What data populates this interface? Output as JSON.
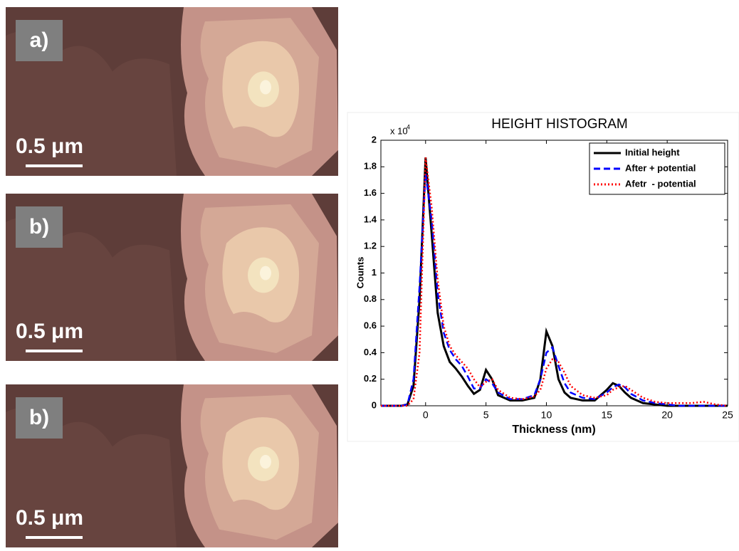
{
  "images": [
    {
      "label": "a)",
      "scale": "0.5 μm"
    },
    {
      "label": "b)",
      "scale": "0.5 μm"
    },
    {
      "label": "b)",
      "scale": "0.5 μm"
    }
  ],
  "chart_data": {
    "type": "line",
    "title": "HEIGHT HISTOGRAM",
    "xlabel": "Thickness  (nm)",
    "ylabel": "Counts",
    "y_scale_label": "x 10",
    "y_scale_exponent": "4",
    "x": [
      -3.7,
      -2,
      -1.5,
      -1,
      -0.5,
      0,
      0.5,
      1,
      1.5,
      2,
      2.5,
      3,
      3.5,
      4,
      4.5,
      5,
      5.5,
      6,
      7,
      8,
      9,
      9.5,
      10,
      10.5,
      11,
      11.5,
      12,
      13,
      14,
      15,
      15.5,
      16,
      16.5,
      17,
      18,
      19,
      20,
      21,
      22,
      23,
      24,
      25
    ],
    "series": [
      {
        "name": "Initial height",
        "color": "#000000",
        "style": "solid",
        "values": [
          0,
          0,
          0.01,
          0.15,
          0.8,
          1.87,
          1.3,
          0.7,
          0.45,
          0.33,
          0.28,
          0.22,
          0.15,
          0.09,
          0.12,
          0.27,
          0.2,
          0.08,
          0.04,
          0.04,
          0.06,
          0.2,
          0.56,
          0.45,
          0.2,
          0.1,
          0.06,
          0.04,
          0.04,
          0.12,
          0.17,
          0.15,
          0.1,
          0.06,
          0.02,
          0.01,
          0,
          0,
          0,
          0,
          0,
          0
        ]
      },
      {
        "name": "After + potential",
        "color": "#0000ff",
        "style": "dashed",
        "values": [
          0,
          0,
          0.01,
          0.2,
          0.9,
          1.75,
          1.4,
          0.85,
          0.55,
          0.42,
          0.35,
          0.3,
          0.22,
          0.13,
          0.13,
          0.2,
          0.17,
          0.1,
          0.05,
          0.05,
          0.08,
          0.2,
          0.4,
          0.44,
          0.3,
          0.17,
          0.1,
          0.06,
          0.05,
          0.1,
          0.14,
          0.16,
          0.14,
          0.09,
          0.04,
          0.02,
          0.01,
          0,
          0,
          0,
          0,
          0
        ]
      },
      {
        "name": "Afetr  - potential",
        "color": "#ff0000",
        "style": "dotted",
        "values": [
          0,
          0,
          0,
          0.05,
          0.4,
          1.87,
          1.5,
          0.95,
          0.6,
          0.45,
          0.38,
          0.33,
          0.28,
          0.2,
          0.14,
          0.18,
          0.2,
          0.12,
          0.06,
          0.05,
          0.07,
          0.12,
          0.28,
          0.35,
          0.33,
          0.25,
          0.15,
          0.08,
          0.06,
          0.08,
          0.12,
          0.14,
          0.15,
          0.12,
          0.06,
          0.03,
          0.02,
          0.02,
          0.02,
          0.03,
          0.01,
          0
        ]
      }
    ],
    "xlim": [
      -3.7,
      25
    ],
    "ylim": [
      0,
      2
    ],
    "xticks": [
      0,
      5,
      10,
      15,
      20,
      25
    ],
    "yticks": [
      0,
      0.2,
      0.4,
      0.6,
      0.8,
      1,
      1.2,
      1.4,
      1.6,
      1.8,
      2
    ],
    "legend": "upper right"
  }
}
